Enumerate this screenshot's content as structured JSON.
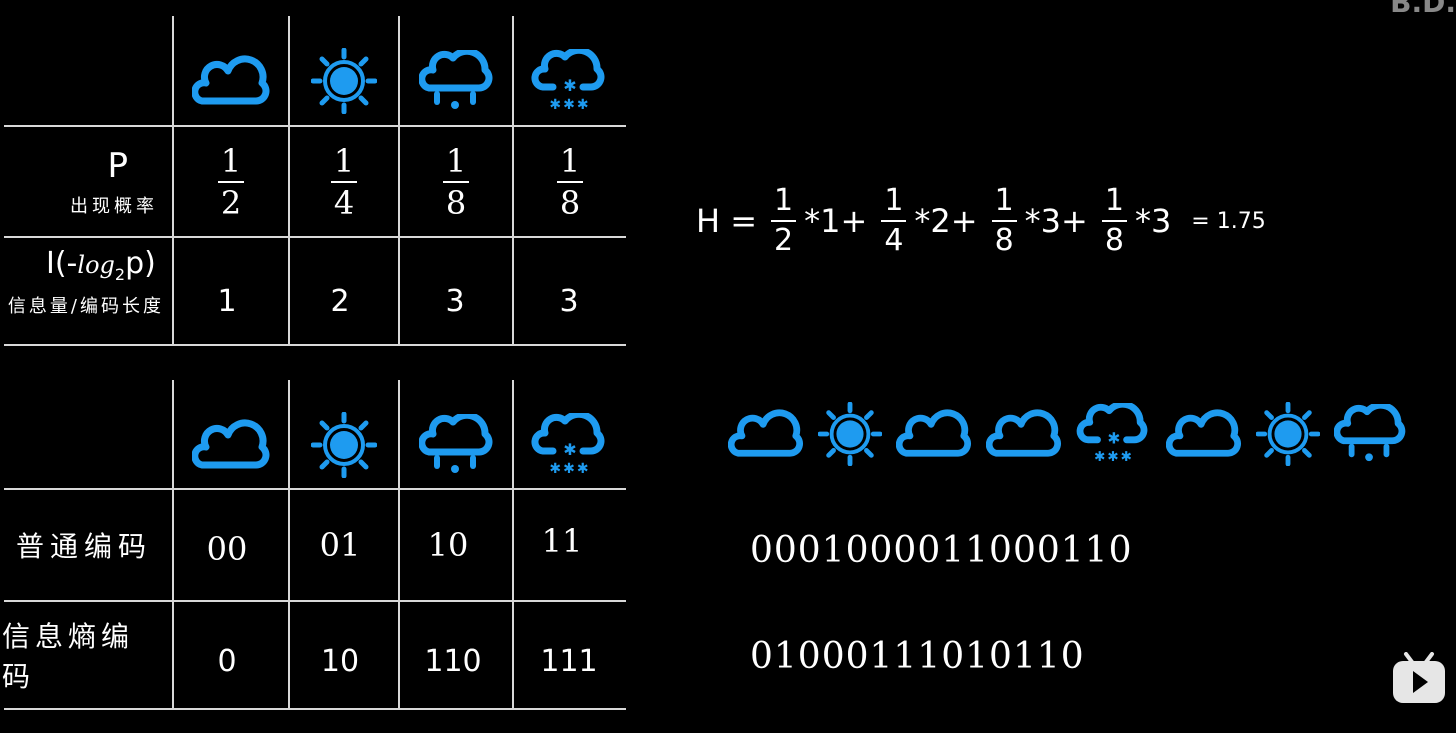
{
  "corner_logo": "B.D.",
  "colors": {
    "icon": "#1E9BF0",
    "background": "#000000",
    "text": "#FFFFFF"
  },
  "weather_icons": [
    "cloud-icon",
    "sun-icon",
    "rain-icon",
    "snow-icon"
  ],
  "table1": {
    "p_symbol": "P",
    "p_label": "出现概率",
    "probabilities": [
      {
        "num": "1",
        "den": "2"
      },
      {
        "num": "1",
        "den": "4"
      },
      {
        "num": "1",
        "den": "8"
      },
      {
        "num": "1",
        "den": "8"
      }
    ],
    "info_prefix": "I(-",
    "info_log": "log",
    "info_sub": "2",
    "info_suffix": "p)",
    "info_label": "信息量/编码长度",
    "info_values": [
      "1",
      "2",
      "3",
      "3"
    ]
  },
  "table2": {
    "normal_label": "普通编码",
    "normal_codes": [
      "00",
      "01",
      "10",
      "11"
    ],
    "entropy_label": "信息熵编码",
    "entropy_codes": [
      "0",
      "10",
      "110",
      "111"
    ]
  },
  "formula": {
    "lhs": "H =",
    "terms": [
      {
        "num": "1",
        "den": "2",
        "op": "*1+"
      },
      {
        "num": "1",
        "den": "4",
        "op": "*2+"
      },
      {
        "num": "1",
        "den": "8",
        "op": "*3+"
      },
      {
        "num": "1",
        "den": "8",
        "op": "*3"
      }
    ],
    "result": "= 1.75"
  },
  "sequence_icons": [
    "cloud-icon",
    "sun-icon",
    "cloud-icon",
    "cloud-icon",
    "snow-icon",
    "cloud-icon",
    "sun-icon",
    "rain-icon"
  ],
  "normal_bitstring": "0001000011000110",
  "entropy_bitstring": "01000111010110"
}
